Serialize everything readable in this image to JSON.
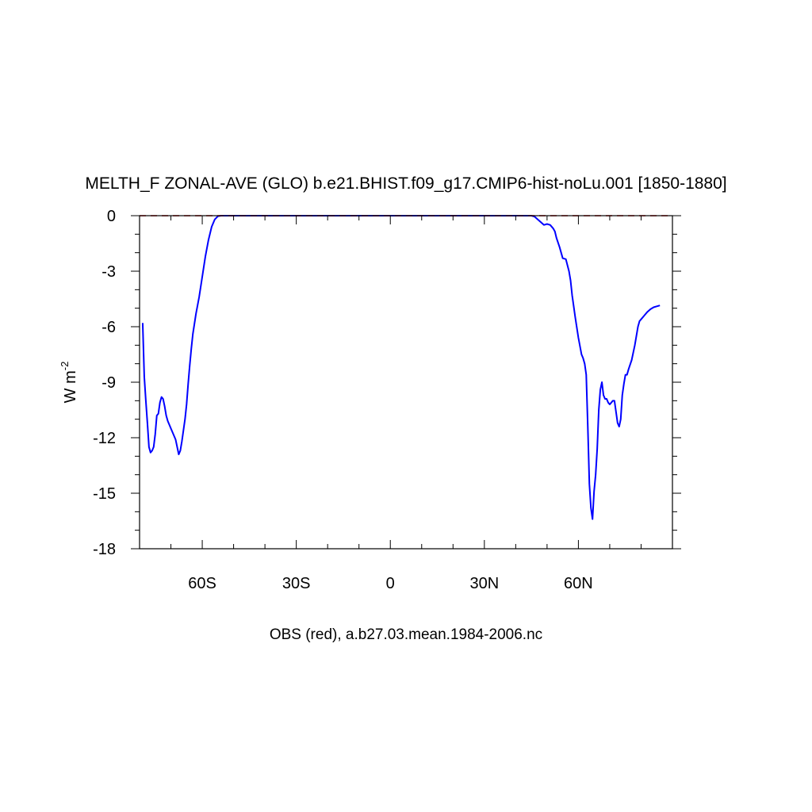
{
  "chart_data": {
    "type": "line",
    "title": "MELTH_F ZONAL-AVE (GLO) b.e21.BHIST.f09_g17.CMIP6-hist-noLu.001 [1850-1880]",
    "xlabel": "OBS (red), a.b27.03.mean.1984-2006.nc",
    "ylabel": "W m",
    "ylabel_sup": "-2",
    "xlim": [
      -80,
      90
    ],
    "ylim": [
      -18,
      0
    ],
    "x_ticks": [
      {
        "value": -60,
        "label": "60S"
      },
      {
        "value": -30,
        "label": "30S"
      },
      {
        "value": 0,
        "label": "0"
      },
      {
        "value": 30,
        "label": "30N"
      },
      {
        "value": 60,
        "label": "60N"
      }
    ],
    "y_ticks": [
      {
        "value": 0,
        "label": "0"
      },
      {
        "value": -3,
        "label": "-3"
      },
      {
        "value": -6,
        "label": "-6"
      },
      {
        "value": -9,
        "label": "-9"
      },
      {
        "value": -12,
        "label": "-12"
      },
      {
        "value": -15,
        "label": "-15"
      },
      {
        "value": -18,
        "label": "-18"
      }
    ],
    "grid": false,
    "series": [
      {
        "color": "#0000ff",
        "style": "solid",
        "points": [
          [
            -79,
            -5.8
          ],
          [
            -78.5,
            -8.7
          ],
          [
            -78,
            -10.0
          ],
          [
            -77.5,
            -11.2
          ],
          [
            -77,
            -12.5
          ],
          [
            -76.5,
            -12.8
          ],
          [
            -76,
            -12.7
          ],
          [
            -75.5,
            -12.5
          ],
          [
            -75,
            -11.8
          ],
          [
            -74.5,
            -10.8
          ],
          [
            -74,
            -10.7
          ],
          [
            -73.5,
            -10.1
          ],
          [
            -73,
            -9.8
          ],
          [
            -72.5,
            -9.9
          ],
          [
            -72,
            -10.3
          ],
          [
            -71.5,
            -10.8
          ],
          [
            -71,
            -11.1
          ],
          [
            -70.5,
            -11.3
          ],
          [
            -70,
            -11.5
          ],
          [
            -69.5,
            -11.7
          ],
          [
            -69,
            -11.9
          ],
          [
            -68.5,
            -12.1
          ],
          [
            -68,
            -12.5
          ],
          [
            -67.5,
            -12.9
          ],
          [
            -67,
            -12.7
          ],
          [
            -66.5,
            -12.2
          ],
          [
            -66,
            -11.6
          ],
          [
            -65.5,
            -11.0
          ],
          [
            -65,
            -10.2
          ],
          [
            -64.5,
            -9.1
          ],
          [
            -64,
            -8.1
          ],
          [
            -63.5,
            -7.2
          ],
          [
            -63,
            -6.4
          ],
          [
            -62,
            -5.3
          ],
          [
            -61,
            -4.4
          ],
          [
            -60,
            -3.3
          ],
          [
            -59,
            -2.2
          ],
          [
            -58,
            -1.3
          ],
          [
            -57,
            -0.6
          ],
          [
            -56,
            -0.2
          ],
          [
            -55,
            -0.03
          ],
          [
            -54,
            0
          ],
          [
            -40,
            0
          ],
          [
            -20,
            0
          ],
          [
            0,
            0
          ],
          [
            20,
            0
          ],
          [
            40,
            0
          ],
          [
            45,
            0
          ],
          [
            46,
            -0.05
          ],
          [
            47,
            -0.2
          ],
          [
            48,
            -0.35
          ],
          [
            49,
            -0.5
          ],
          [
            50,
            -0.45
          ],
          [
            51,
            -0.5
          ],
          [
            52,
            -0.7
          ],
          [
            52.5,
            -0.85
          ],
          [
            53,
            -1.2
          ],
          [
            54,
            -1.7
          ],
          [
            55,
            -2.3
          ],
          [
            56,
            -2.35
          ],
          [
            57,
            -3.0
          ],
          [
            57.5,
            -3.5
          ],
          [
            58,
            -4.3
          ],
          [
            59,
            -5.5
          ],
          [
            60,
            -6.6
          ],
          [
            61,
            -7.5
          ],
          [
            61.5,
            -7.7
          ],
          [
            62,
            -8.0
          ],
          [
            62.5,
            -8.6
          ],
          [
            63,
            -11.4
          ],
          [
            63.5,
            -14.5
          ],
          [
            64,
            -15.8
          ],
          [
            64.5,
            -16.4
          ],
          [
            65,
            -14.9
          ],
          [
            65.5,
            -14.0
          ],
          [
            66,
            -12.6
          ],
          [
            66.5,
            -10.5
          ],
          [
            67,
            -9.4
          ],
          [
            67.5,
            -9.0
          ],
          [
            68,
            -9.7
          ],
          [
            68.5,
            -9.9
          ],
          [
            69,
            -9.9
          ],
          [
            69.5,
            -10.1
          ],
          [
            70,
            -10.2
          ],
          [
            70.5,
            -10.1
          ],
          [
            71,
            -10.0
          ],
          [
            71.5,
            -10.0
          ],
          [
            72,
            -10.6
          ],
          [
            72.5,
            -11.2
          ],
          [
            73,
            -11.4
          ],
          [
            73.5,
            -11.0
          ],
          [
            74,
            -9.7
          ],
          [
            74.5,
            -9.1
          ],
          [
            75,
            -8.6
          ],
          [
            75.5,
            -8.6
          ],
          [
            76,
            -8.3
          ],
          [
            77,
            -7.8
          ],
          [
            78,
            -7.0
          ],
          [
            78.5,
            -6.5
          ],
          [
            79,
            -6.0
          ],
          [
            79.5,
            -5.7
          ],
          [
            80,
            -5.6
          ],
          [
            81,
            -5.4
          ],
          [
            82,
            -5.2
          ],
          [
            83,
            -5.05
          ],
          [
            84,
            -4.95
          ],
          [
            85,
            -4.9
          ],
          [
            86,
            -4.85
          ]
        ]
      },
      {
        "color": "#cc0000",
        "style": "dashed",
        "points": [
          [
            -80,
            0
          ],
          [
            90,
            0
          ]
        ]
      }
    ]
  }
}
